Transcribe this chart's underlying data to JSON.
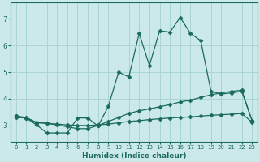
{
  "xlabel": "Humidex (Indice chaleur)",
  "background_color": "#cce9e9",
  "grid_color": "#aad4d4",
  "line_color": "#1a6b5a",
  "x_ticks": [
    0,
    1,
    2,
    3,
    4,
    5,
    6,
    7,
    8,
    9,
    10,
    11,
    12,
    13,
    14,
    15,
    16,
    17,
    18,
    19,
    20,
    21,
    22,
    23
  ],
  "y_ticks": [
    3,
    4,
    5,
    6,
    7
  ],
  "ylim": [
    2.4,
    7.6
  ],
  "xlim": [
    -0.5,
    23.5
  ],
  "series1_x": [
    0,
    1,
    2,
    3,
    4,
    5,
    6,
    7,
    8,
    9,
    10,
    11,
    12,
    13,
    14,
    15,
    16,
    17,
    18,
    19,
    20,
    21,
    22,
    23
  ],
  "series1_y": [
    3.35,
    3.28,
    3.02,
    2.72,
    2.72,
    2.72,
    3.28,
    3.28,
    2.98,
    3.72,
    5.0,
    4.82,
    6.45,
    5.25,
    6.55,
    6.5,
    7.05,
    6.45,
    6.18,
    4.28,
    4.18,
    4.22,
    4.28,
    3.18
  ],
  "series2_x": [
    0,
    1,
    2,
    3,
    4,
    5,
    6,
    7,
    8,
    9,
    10,
    11,
    12,
    13,
    14,
    15,
    16,
    17,
    18,
    19,
    20,
    21,
    22,
    23
  ],
  "series2_y": [
    3.35,
    3.3,
    3.1,
    3.08,
    3.02,
    2.95,
    2.88,
    2.88,
    3.0,
    3.15,
    3.3,
    3.45,
    3.55,
    3.62,
    3.7,
    3.78,
    3.88,
    3.95,
    4.05,
    4.15,
    4.22,
    4.28,
    4.32,
    3.18
  ],
  "series3_x": [
    0,
    1,
    2,
    3,
    4,
    5,
    6,
    7,
    8,
    9,
    10,
    11,
    12,
    13,
    14,
    15,
    16,
    17,
    18,
    19,
    20,
    21,
    22,
    23
  ],
  "series3_y": [
    3.3,
    3.28,
    3.12,
    3.08,
    3.05,
    3.02,
    3.0,
    3.0,
    3.02,
    3.05,
    3.1,
    3.15,
    3.18,
    3.22,
    3.25,
    3.28,
    3.3,
    3.32,
    3.35,
    3.38,
    3.4,
    3.42,
    3.45,
    3.12
  ]
}
